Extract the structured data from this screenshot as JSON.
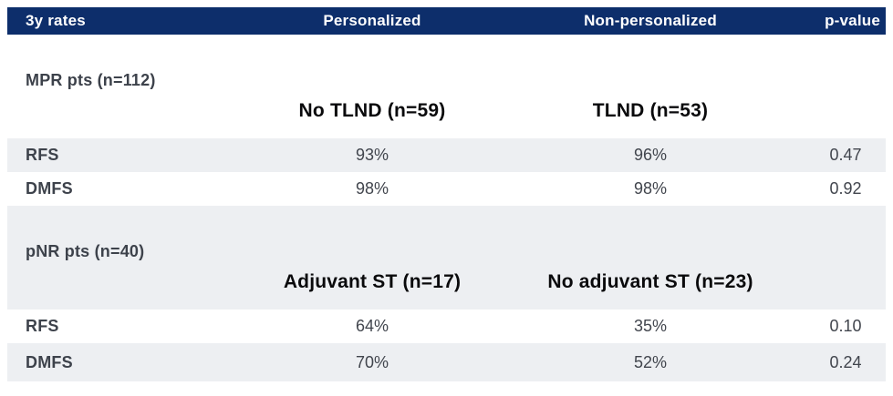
{
  "colors": {
    "header_bg": "#0d2e6b",
    "header_text": "#ffffff",
    "stripe_bg": "#edeff2",
    "label_text": "#3d424b",
    "value_text": "#41454d",
    "subheader_text": "#0a0a0c"
  },
  "chart_data": {
    "type": "table",
    "title": "3y rates",
    "columns": [
      "3y rates",
      "Personalized",
      "Non-personalized",
      "p-value"
    ],
    "sections": [
      {
        "group": "MPR pts (n=112)",
        "subheaders": [
          "No TLND (n=59)",
          "TLND (n=53)"
        ],
        "rows": [
          {
            "metric": "RFS",
            "values": [
              "93%",
              "96%"
            ],
            "p": "0.47"
          },
          {
            "metric": "DMFS",
            "values": [
              "98%",
              "98%"
            ],
            "p": "0.92"
          }
        ]
      },
      {
        "group": "pNR pts (n=40)",
        "subheaders": [
          "Adjuvant ST (n=17)",
          "No adjuvant ST (n=23)"
        ],
        "rows": [
          {
            "metric": "RFS",
            "values": [
              "64%",
              "35%"
            ],
            "p": "0.10"
          },
          {
            "metric": "DMFS",
            "values": [
              "70%",
              "52%"
            ],
            "p": "0.24"
          }
        ]
      }
    ]
  }
}
